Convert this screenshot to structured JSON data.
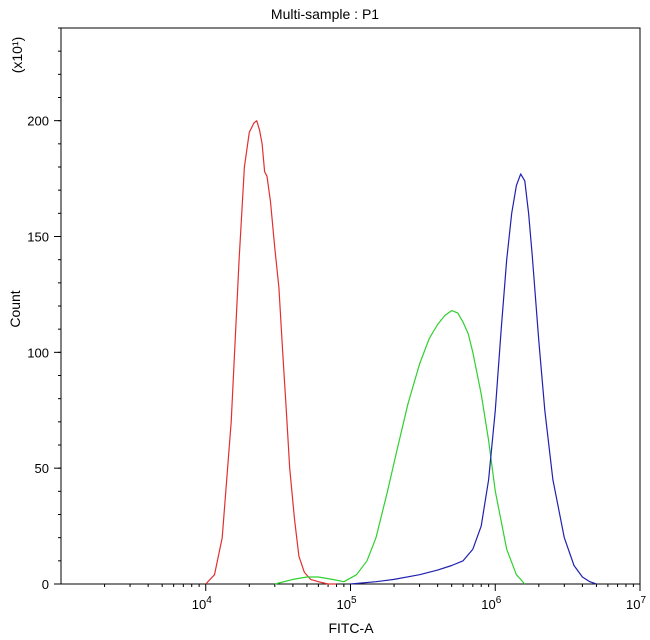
{
  "chart_data": {
    "type": "line",
    "title": "Multi-sample : P1",
    "xlabel": "FITC-A",
    "ylabel": "Count",
    "y_multiplier": "(x10¹)",
    "xscale": "log",
    "xlim": [
      1000,
      10000000
    ],
    "ylim": [
      0,
      240
    ],
    "x_ticks": [
      {
        "value": 10000,
        "base": "10",
        "exp": "4"
      },
      {
        "value": 100000,
        "base": "10",
        "exp": "5"
      },
      {
        "value": 1000000,
        "base": "10",
        "exp": "6"
      },
      {
        "value": 10000000,
        "base": "10",
        "exp": "7"
      }
    ],
    "y_ticks": [
      {
        "value": 0,
        "label": "0"
      },
      {
        "value": 50,
        "label": "50"
      },
      {
        "value": 100,
        "label": "100"
      },
      {
        "value": 150,
        "label": "150"
      },
      {
        "value": 200,
        "label": "200"
      }
    ],
    "grid": false,
    "series": [
      {
        "color": "#e03030",
        "x": [
          10000,
          11500,
          13000,
          15000,
          17000,
          18500,
          20000,
          21500,
          22500,
          23500,
          24500,
          25500,
          26500,
          28000,
          30000,
          32000,
          34000,
          36000,
          38000,
          41000,
          44000,
          48000,
          53000,
          60000,
          70000,
          80000
        ],
        "y": [
          0,
          4,
          20,
          70,
          140,
          180,
          195,
          199,
          200,
          196,
          190,
          178,
          176,
          165,
          145,
          128,
          100,
          75,
          50,
          28,
          12,
          5,
          2,
          1,
          0,
          0
        ]
      },
      {
        "color": "#30d030",
        "x": [
          30000,
          40000,
          50000,
          60000,
          75000,
          90000,
          110000,
          130000,
          150000,
          180000,
          210000,
          250000,
          300000,
          350000,
          400000,
          450000,
          500000,
          550000,
          600000,
          650000,
          700000,
          800000,
          900000,
          1000000,
          1200000,
          1400000,
          1600000
        ],
        "y": [
          0,
          2,
          3,
          3,
          2,
          1,
          4,
          10,
          20,
          40,
          58,
          78,
          95,
          106,
          112,
          116,
          118,
          117,
          113,
          108,
          100,
          82,
          62,
          40,
          15,
          4,
          0
        ]
      },
      {
        "color": "#2020b0",
        "x": [
          100000,
          150000,
          200000,
          300000,
          400000,
          500000,
          600000,
          700000,
          800000,
          900000,
          1000000,
          1100000,
          1200000,
          1300000,
          1400000,
          1500000,
          1600000,
          1700000,
          1800000,
          2000000,
          2200000,
          2500000,
          3000000,
          3500000,
          4000000,
          4500000,
          5000000
        ],
        "y": [
          0,
          1,
          2,
          4,
          6,
          8,
          10,
          15,
          25,
          45,
          75,
          110,
          140,
          160,
          172,
          177,
          174,
          160,
          142,
          105,
          75,
          45,
          20,
          8,
          3,
          1,
          0
        ]
      }
    ]
  }
}
